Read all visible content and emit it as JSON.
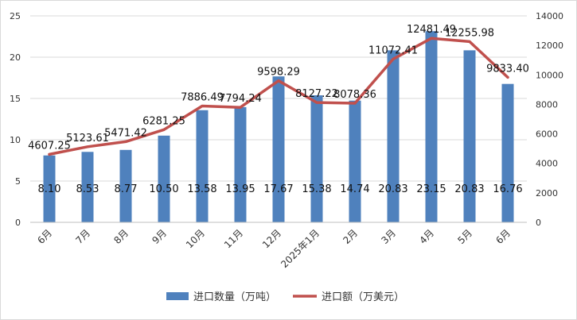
{
  "chart_data": {
    "type": "bar+line",
    "categories": [
      "6月",
      "7月",
      "8月",
      "9月",
      "10月",
      "11月",
      "12月",
      "2025年1月",
      "2月",
      "3月",
      "4月",
      "5月",
      "6月"
    ],
    "series": [
      {
        "name": "进口数量（万吨）",
        "type": "bar",
        "axis": "left",
        "color": "#4f81bd",
        "values": [
          8.1,
          8.53,
          8.77,
          10.5,
          13.58,
          13.95,
          17.67,
          15.38,
          14.74,
          20.83,
          23.15,
          20.83,
          16.76
        ],
        "labels": [
          "8.10",
          "8.53",
          "8.77",
          "10.50",
          "13.58",
          "13.95",
          "17.67",
          "15.38",
          "14.74",
          "20.83",
          "23.15",
          "20.83",
          "16.76"
        ]
      },
      {
        "name": "进口额（万美元）",
        "type": "line",
        "axis": "right",
        "color": "#c0504d",
        "values": [
          4607.25,
          5123.61,
          5471.42,
          6281.25,
          7886.49,
          7794.24,
          9598.29,
          8127.22,
          8078.36,
          11072.41,
          12481.49,
          12255.98,
          9833.4
        ],
        "labels": [
          "4607.25",
          "5123.61",
          "5471.42",
          "6281.25",
          "7886.49",
          "7794.24",
          "9598.29",
          "8127.22",
          "8078.36",
          "11072.41",
          "12481.49",
          "12255.98",
          "9833.40"
        ]
      }
    ],
    "y_left": {
      "min": 0,
      "max": 25,
      "ticks": [
        "0",
        "5",
        "10",
        "15",
        "20",
        "25"
      ],
      "tick_values": [
        0,
        5,
        10,
        15,
        20,
        25
      ]
    },
    "y_right": {
      "min": 0,
      "max": 14000,
      "ticks": [
        "0",
        "2000",
        "4000",
        "6000",
        "8000",
        "10000",
        "12000",
        "14000"
      ],
      "tick_values": [
        0,
        2000,
        4000,
        6000,
        8000,
        10000,
        12000,
        14000
      ]
    },
    "grid": true,
    "legend_position": "bottom"
  }
}
